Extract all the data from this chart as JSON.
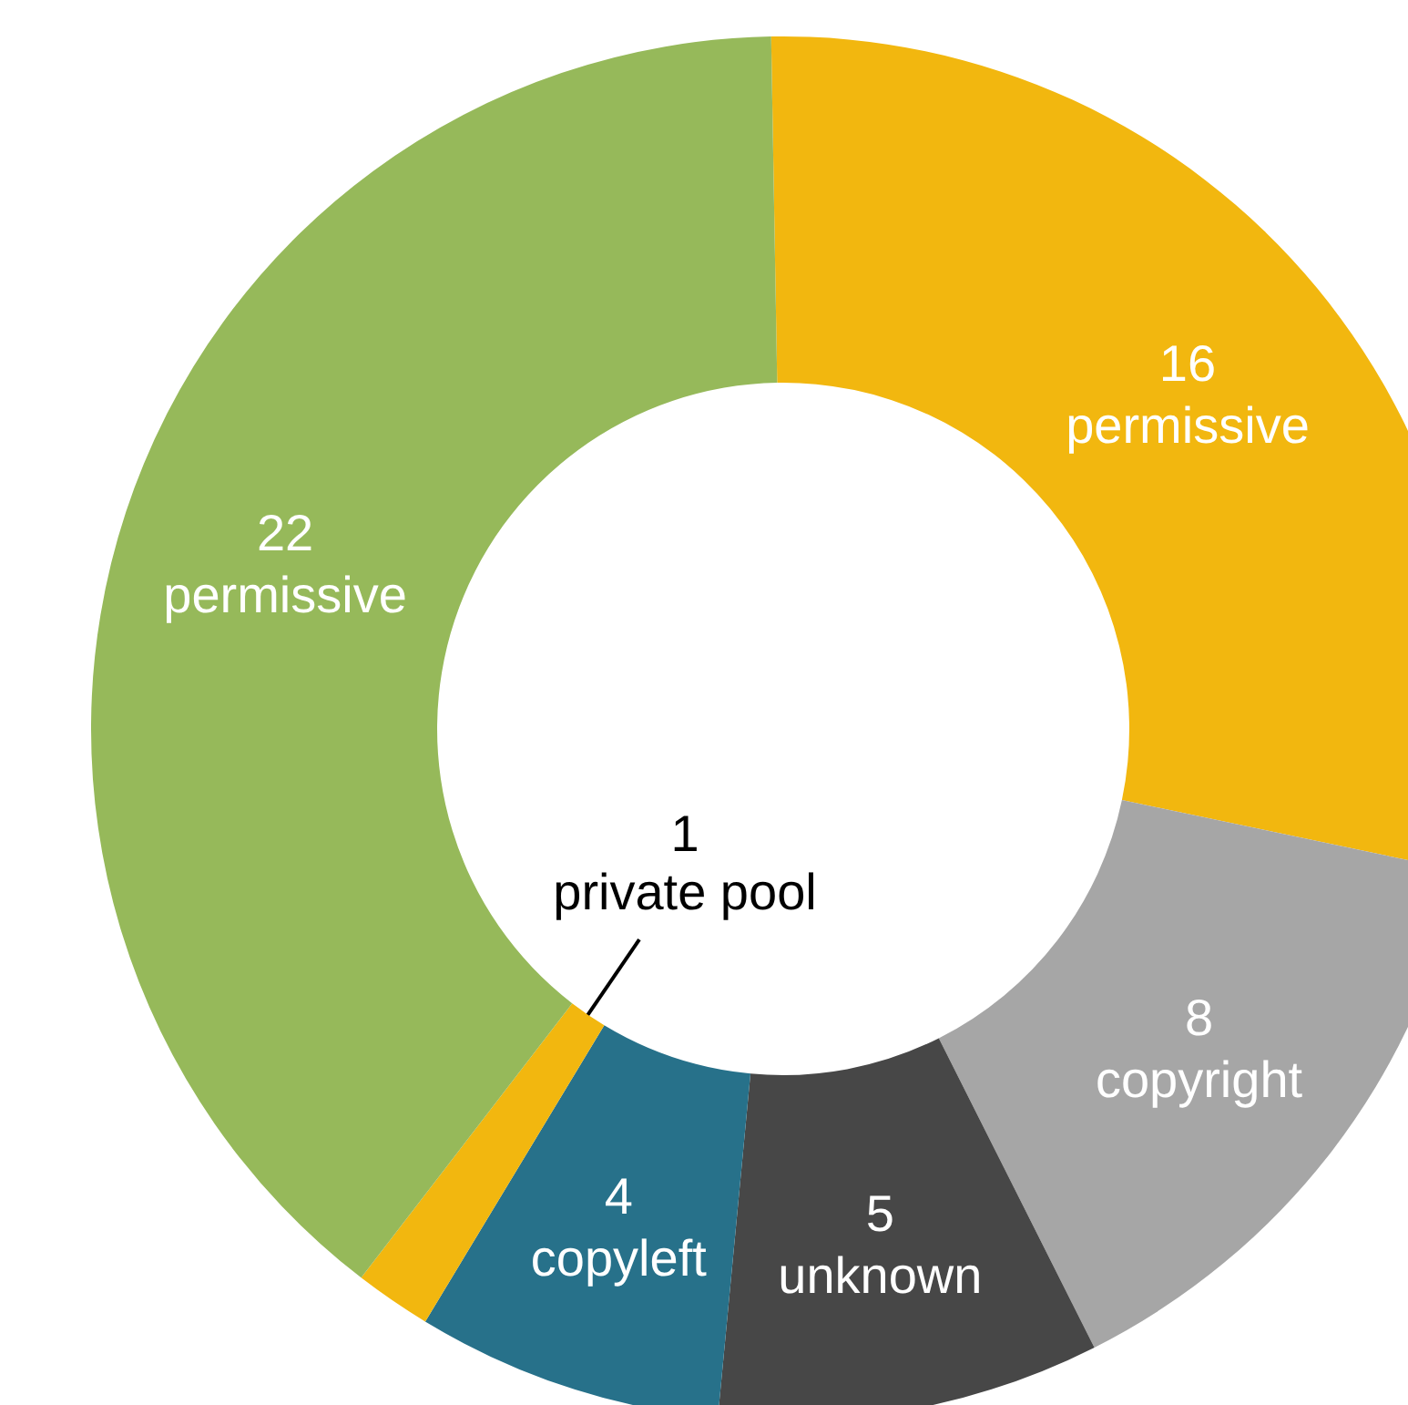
{
  "chart_data": {
    "type": "donut",
    "categories": [
      "permissive",
      "copyright",
      "unknown",
      "copyleft",
      "private pool",
      "permissive"
    ],
    "values": [
      16,
      8,
      5,
      4,
      1,
      22
    ],
    "colors": [
      "#f2b70f",
      "#a6a6a6",
      "#474747",
      "#27718a",
      "#f2b70f",
      "#96b95a"
    ],
    "data_labels": true
  }
}
